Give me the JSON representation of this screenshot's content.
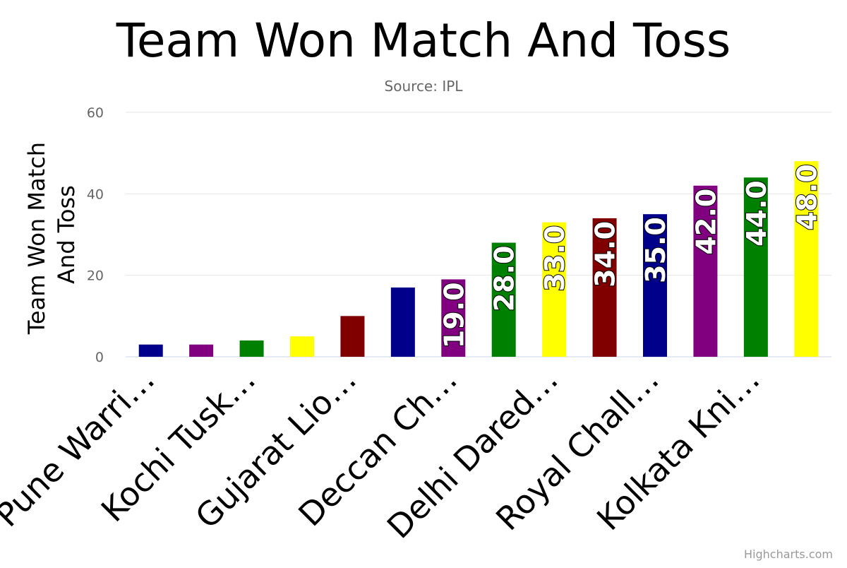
{
  "chart_data": {
    "type": "bar",
    "title": "Team Won Match And Toss",
    "subtitle": "Source: IPL",
    "ylabel": "Team Won Match And Toss",
    "ylabel_lines": [
      "Team Won Match",
      "And Toss"
    ],
    "xlabel": "",
    "ylim": [
      0,
      60
    ],
    "yticks": [
      0,
      20,
      40,
      60
    ],
    "grid": true,
    "legend": "none",
    "categories": [
      "Pune Warri…",
      "",
      "Kochi Tusk…",
      "",
      "Gujarat Lio…",
      "",
      "Deccan Ch…",
      "",
      "Delhi Dared…",
      "",
      "Royal Chall…",
      "",
      "Kolkata Kni…",
      ""
    ],
    "values": [
      3,
      3,
      4,
      5,
      10,
      17,
      19,
      28,
      33,
      34,
      35,
      42,
      44,
      48
    ],
    "colors": [
      "#00008b",
      "#800080",
      "#008000",
      "#ffff00",
      "#800000",
      "#00008b",
      "#800080",
      "#008000",
      "#ffff00",
      "#800000",
      "#00008b",
      "#800080",
      "#008000",
      "#ffff00"
    ],
    "data_labels": [
      "",
      "",
      "",
      "",
      "",
      "",
      "19.0",
      "28.0",
      "33.0",
      "34.0",
      "35.0",
      "42.0",
      "44.0",
      "48.0"
    ]
  },
  "credit": "Highcharts.com"
}
